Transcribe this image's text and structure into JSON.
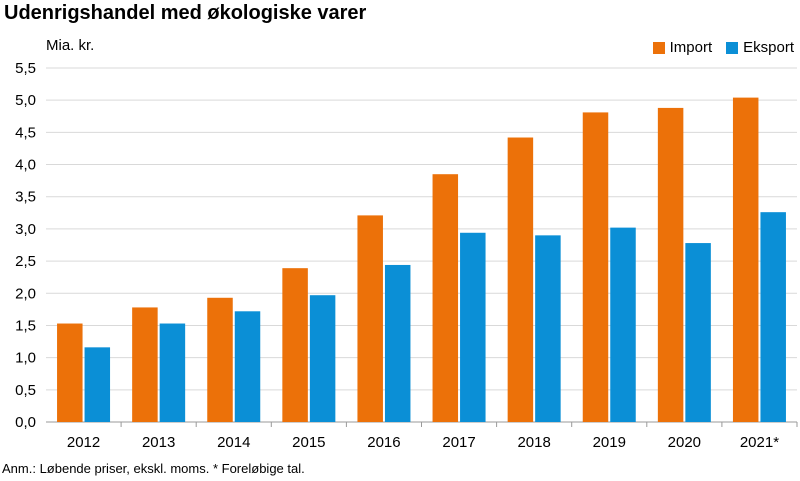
{
  "title": "Udenrigshandel med økologiske varer",
  "footnote": "Anm.: Løbende priser, ekskl. moms. * Foreløbige tal.",
  "colors": {
    "Import": "#ec7109",
    "Eksport": "#0b8fd6",
    "grid": "#d9d9d9",
    "axis": "#9a9a9a"
  },
  "chart_data": {
    "type": "bar",
    "ylabel": "Mia. kr.",
    "categories": [
      "2012",
      "2013",
      "2014",
      "2015",
      "2016",
      "2017",
      "2018",
      "2019",
      "2020",
      "2021*"
    ],
    "series": [
      {
        "name": "Import",
        "values": [
          1.53,
          1.78,
          1.93,
          2.39,
          3.21,
          3.85,
          4.42,
          4.81,
          4.88,
          5.04
        ]
      },
      {
        "name": "Eksport",
        "values": [
          1.16,
          1.53,
          1.72,
          1.97,
          2.44,
          2.94,
          2.9,
          3.02,
          2.78,
          3.26
        ]
      }
    ],
    "ylim": [
      0,
      5.5
    ],
    "yticks": [
      "0,0",
      "0,5",
      "1,0",
      "1,5",
      "2,0",
      "2,5",
      "3,0",
      "3,5",
      "4,0",
      "4,5",
      "5,0",
      "5,5"
    ],
    "grid": true,
    "legend": "top-right"
  }
}
